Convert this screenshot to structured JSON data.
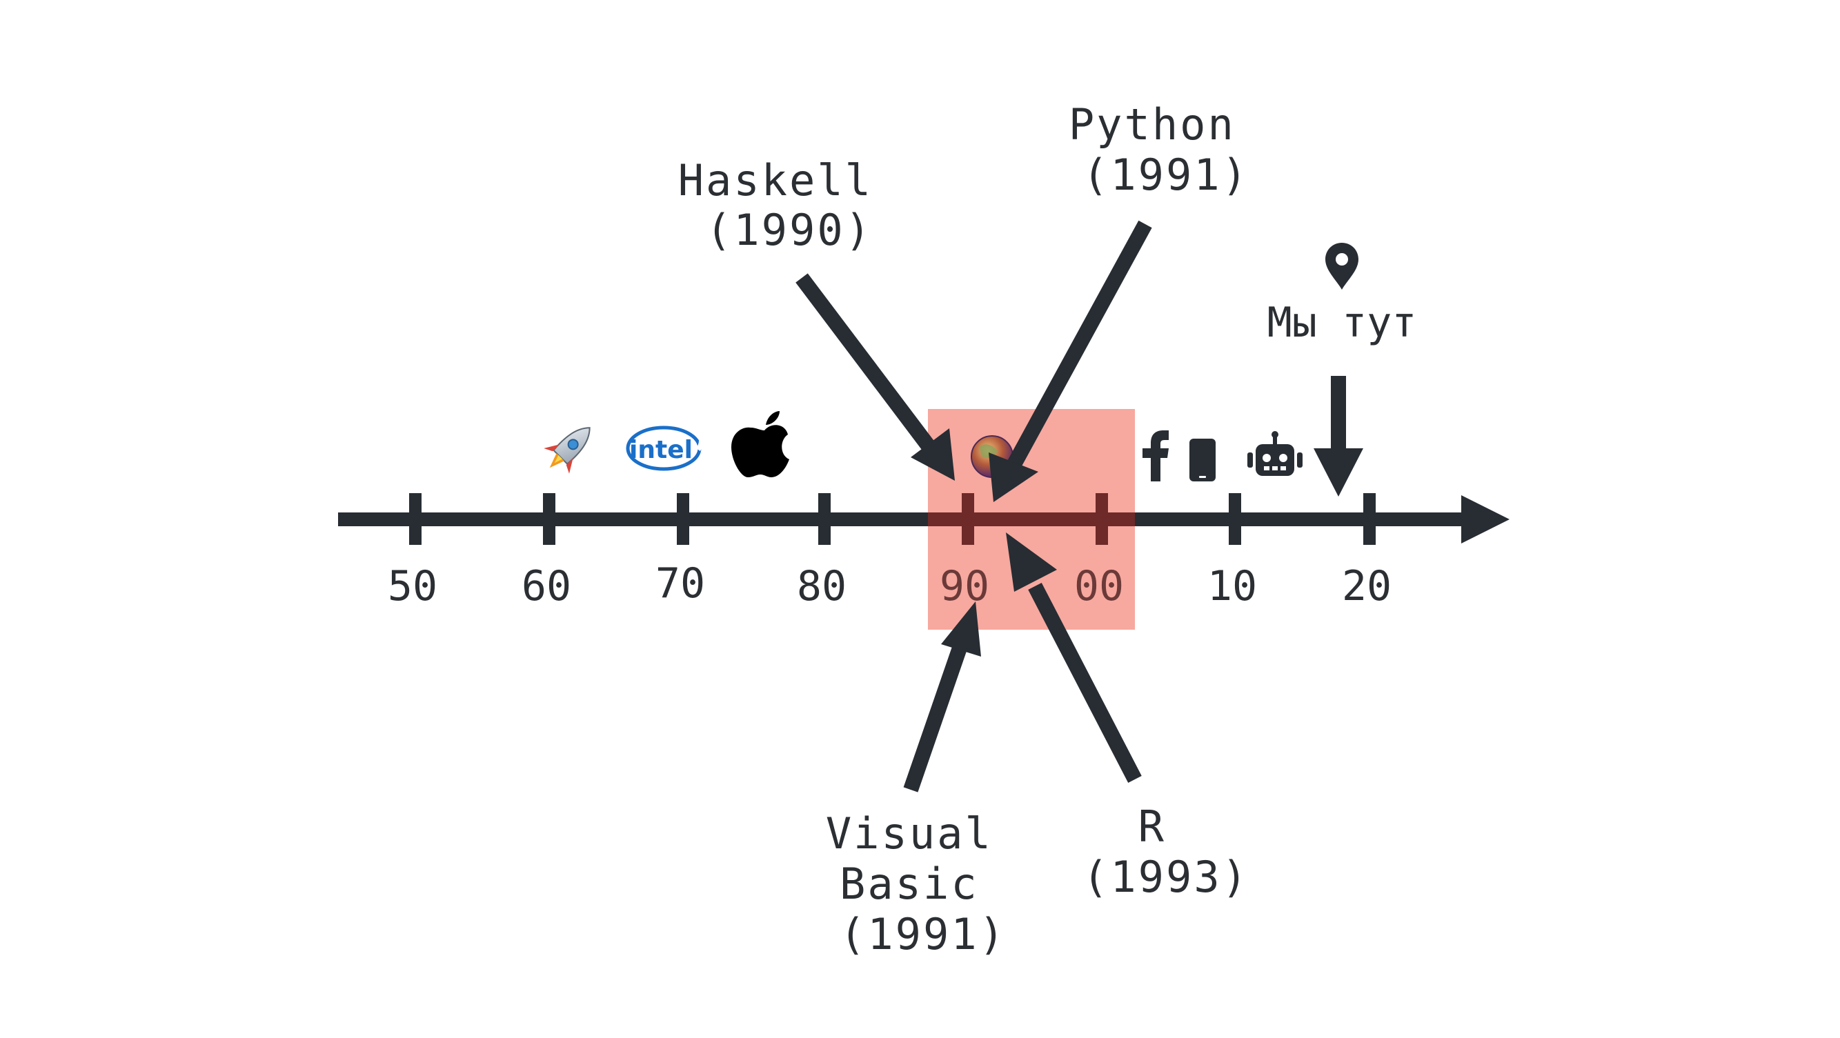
{
  "timeline": {
    "ticks": [
      {
        "label": "50",
        "key": "50"
      },
      {
        "label": "60",
        "key": "60"
      },
      {
        "label": "70",
        "key": "70"
      },
      {
        "label": "80",
        "key": "80"
      },
      {
        "label": "90",
        "key": "90"
      },
      {
        "label": "00",
        "key": "00"
      },
      {
        "label": "10",
        "key": "10"
      },
      {
        "label": "20",
        "key": "20"
      }
    ],
    "highlight_color": "#f7a39a",
    "line_color": "#272d33"
  },
  "era_icons": [
    {
      "name": "rocket-icon",
      "decade": "60"
    },
    {
      "name": "intel-logo-icon",
      "decade": "70",
      "text": "intel"
    },
    {
      "name": "apple-logo-icon",
      "decade": "80"
    },
    {
      "name": "globe-icon",
      "decade": "90"
    },
    {
      "name": "facebook-icon",
      "decade": "00"
    },
    {
      "name": "smartphone-icon",
      "decade": "10"
    },
    {
      "name": "robot-icon",
      "decade": "10"
    }
  ],
  "callouts": {
    "haskell": {
      "lines": [
        "Haskell",
        "(1990)"
      ]
    },
    "python": {
      "lines": [
        "Python",
        "(1991)"
      ]
    },
    "visual_basic": {
      "lines": [
        "Visual",
        "Basic",
        "(1991)"
      ]
    },
    "r": {
      "lines": [
        "R",
        "(1993)"
      ]
    }
  },
  "marker": {
    "label": "Мы тут",
    "icon": "map-pin-icon"
  }
}
